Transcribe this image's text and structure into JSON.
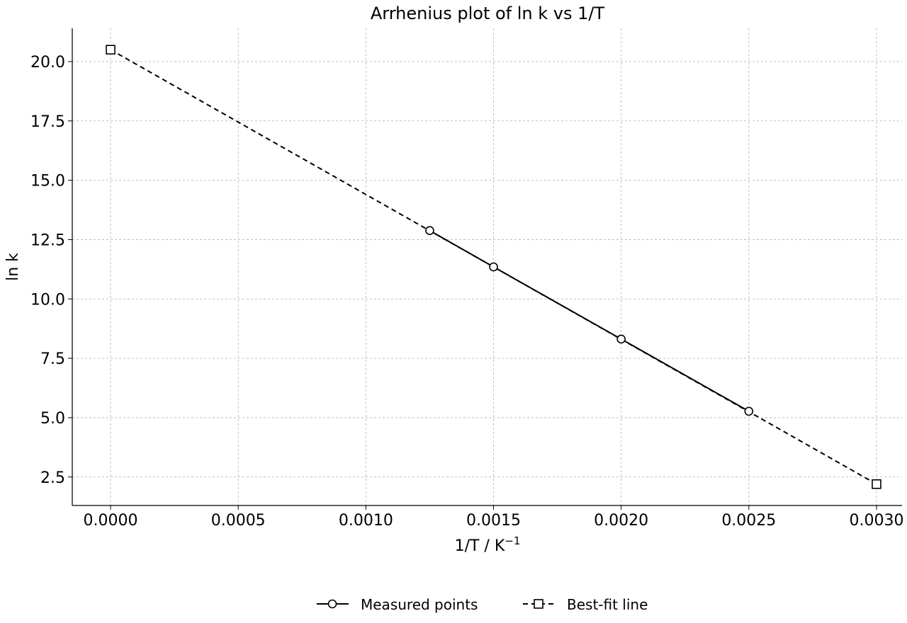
{
  "chart_data": {
    "type": "line",
    "title": "Arrhenius plot of ln k vs 1/T",
    "xlabel_base": "1/T / K",
    "xlabel_sup": "−1",
    "ylabel": "ln k",
    "xlim": [
      -0.00015,
      0.0031
    ],
    "ylim": [
      1.3,
      21.4
    ],
    "xticks": [
      0.0,
      0.0005,
      0.001,
      0.0015,
      0.002,
      0.0025,
      0.003
    ],
    "xtick_labels": [
      "0.0000",
      "0.0005",
      "0.0010",
      "0.0015",
      "0.0020",
      "0.0025",
      "0.0030"
    ],
    "yticks": [
      2.5,
      5.0,
      7.5,
      10.0,
      12.5,
      15.0,
      17.5,
      20.0
    ],
    "ytick_labels": [
      "2.5",
      "5.0",
      "7.5",
      "10.0",
      "12.5",
      "15.0",
      "17.5",
      "20.0"
    ],
    "grid": true,
    "legend_position": "bottom-center",
    "series": [
      {
        "name": "Measured points",
        "marker": "circle",
        "linestyle": "solid",
        "color": "#000000",
        "x": [
          0.00125,
          0.0015,
          0.002,
          0.0025
        ],
        "y": [
          12.88,
          11.35,
          8.31,
          5.27
        ]
      },
      {
        "name": "Best-fit line",
        "marker": "square",
        "linestyle": "dashed",
        "color": "#000000",
        "x": [
          0.0,
          0.003
        ],
        "y": [
          20.5,
          2.2
        ]
      }
    ]
  }
}
